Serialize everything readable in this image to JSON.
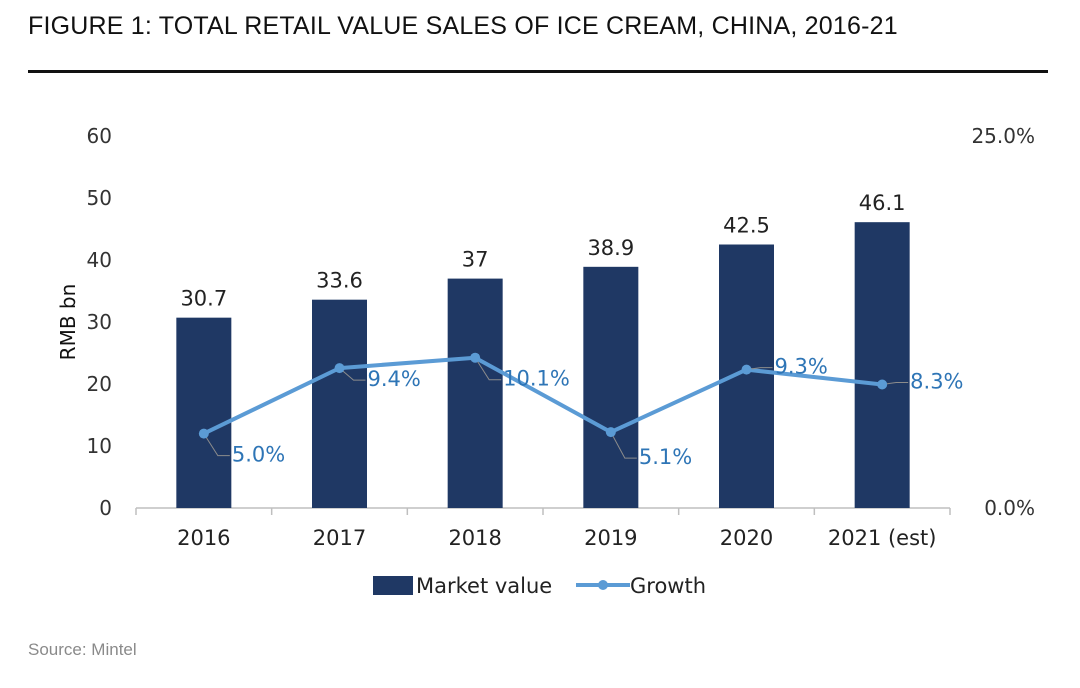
{
  "figure": {
    "title": "FIGURE 1: TOTAL RETAIL VALUE SALES OF ICE CREAM, CHINA, 2016-21",
    "source": "Source: Mintel"
  },
  "chart_data": {
    "type": "bar",
    "title": "FIGURE 1: TOTAL RETAIL VALUE SALES OF ICE CREAM, CHINA, 2016-21",
    "categories": [
      "2016",
      "2017",
      "2018",
      "2019",
      "2020",
      "2021 (est)"
    ],
    "series": [
      {
        "name": "Market value",
        "type": "bar",
        "axis": "left",
        "color": "#1f3864",
        "values": [
          30.7,
          33.6,
          37,
          38.9,
          42.5,
          46.1
        ],
        "labels": [
          "30.7",
          "33.6",
          "37",
          "38.9",
          "42.5",
          "46.1"
        ]
      },
      {
        "name": "Growth",
        "type": "line",
        "axis": "right",
        "color": "#5b9bd5",
        "values": [
          5.0,
          9.4,
          10.1,
          5.1,
          9.3,
          8.3
        ],
        "labels": [
          "5.0%",
          "9.4%",
          "10.1%",
          "5.1%",
          "9.3%",
          "8.3%"
        ]
      }
    ],
    "ylabel": "RMB bn",
    "ylim": [
      0,
      60
    ],
    "yticks": [
      "0",
      "10",
      "20",
      "30",
      "40",
      "50",
      "60"
    ],
    "y2lim": [
      0,
      25
    ],
    "y2ticks": [
      "0.0%",
      "25.0%"
    ],
    "legend": "bottom-center",
    "grid": false
  }
}
